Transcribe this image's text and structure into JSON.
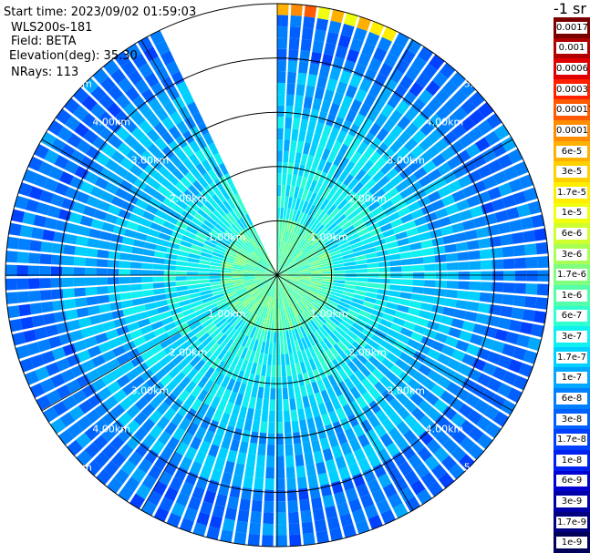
{
  "info": {
    "start_time": "Start time: 2023/09/02 01:59:03",
    "device": "WLS200s-181",
    "field": "Field: BETA",
    "elevation": "Elevation(deg): 35.30",
    "nrays": "NRays: 113"
  },
  "colorbar": {
    "units_label": "-1 sr",
    "labels": [
      "0.0017",
      "0.001",
      "0.0006",
      "0.0003",
      "0.00017",
      "0.0001",
      "6e-5",
      "3e-5",
      "1.7e-5",
      "1e-5",
      "6e-6",
      "3e-6",
      "1.7e-6",
      "1e-6",
      "6e-7",
      "3e-7",
      "1.7e-7",
      "1e-7",
      "6e-8",
      "3e-8",
      "1.7e-8",
      "1e-8",
      "6e-9",
      "3e-9",
      "1.7e-9",
      "1e-9"
    ],
    "colors": [
      "#7a0000",
      "#b00000",
      "#e00000",
      "#ff2000",
      "#ff5a00",
      "#ff8c00",
      "#ffb000",
      "#ffd000",
      "#ffee00",
      "#f0ff10",
      "#d0ff30",
      "#a8ff55",
      "#80ff80",
      "#55ffaa",
      "#30ffd0",
      "#10f0f0",
      "#00d0ff",
      "#00a8ff",
      "#0080ff",
      "#0060ff",
      "#0040ff",
      "#0020f0",
      "#0000d0",
      "#0000a8",
      "#000080",
      "#000058"
    ]
  },
  "chart_data": {
    "type": "ppi",
    "field": "BETA",
    "units": "sr-1",
    "elevation_deg": 35.3,
    "nrays": 113,
    "ring_labels": [
      "1.00km",
      "2.00km",
      "3.00km",
      "4.00km",
      "5.00km"
    ],
    "max_range_km": 5.0,
    "range_rings_km": [
      1,
      2,
      3,
      4,
      5
    ],
    "radial_lines_deg": [
      0,
      30,
      60,
      90,
      120,
      150,
      180,
      210,
      240,
      270,
      300,
      330
    ],
    "missing_sector_deg": [
      335,
      360
    ],
    "color_scale": "log",
    "color_min": 1e-09,
    "color_max": 0.0017
  }
}
